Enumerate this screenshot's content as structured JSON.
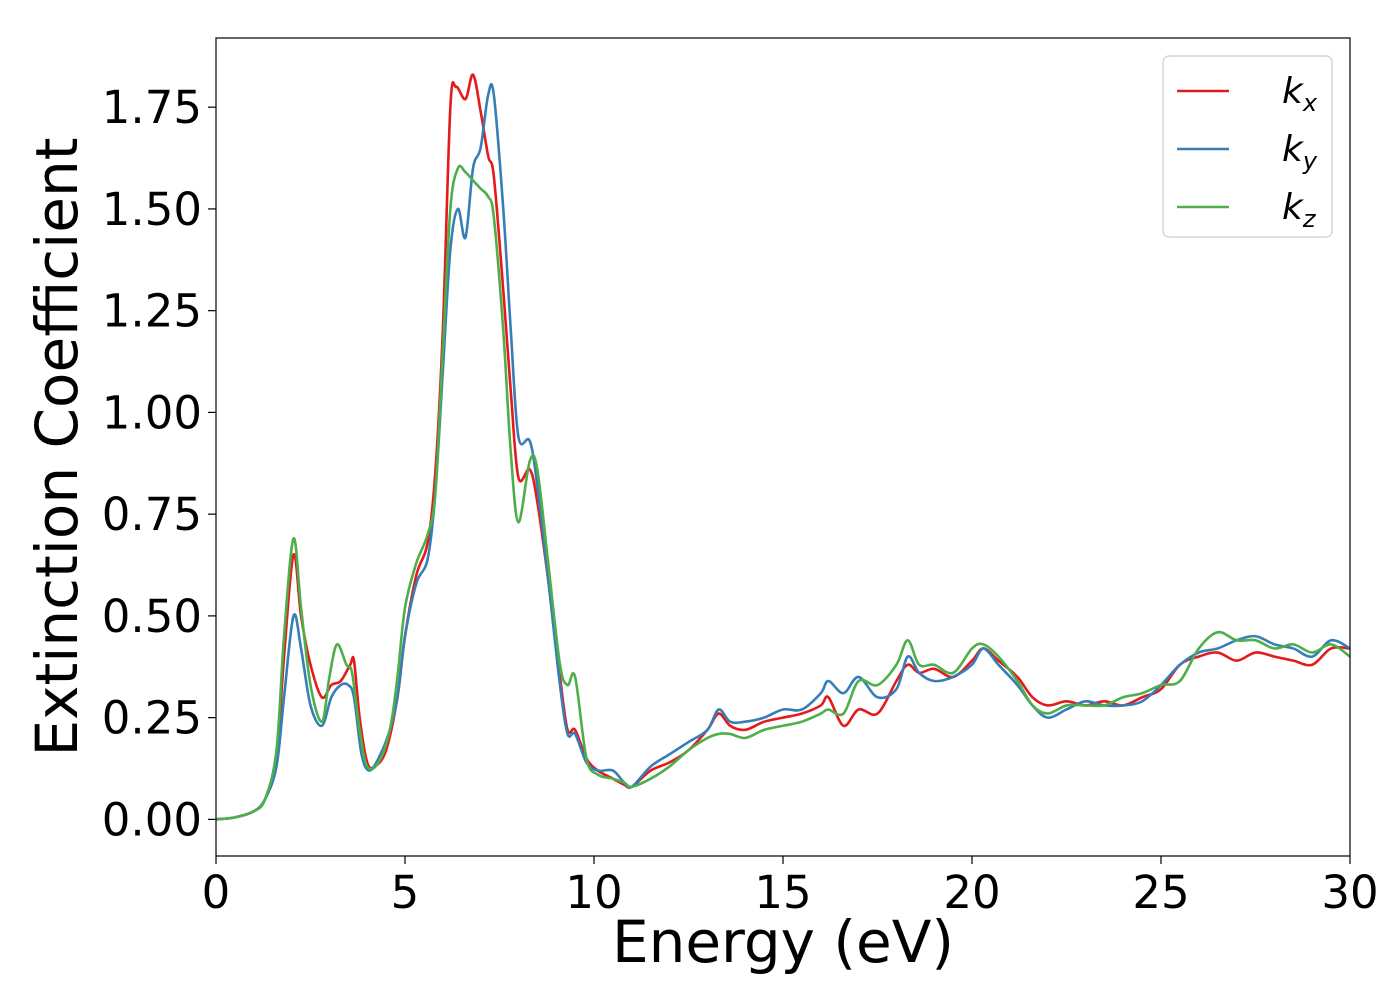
{
  "chart_data": {
    "type": "line",
    "xlabel": "Energy (eV)",
    "ylabel": "Extinction Coefficient",
    "xlim": [
      0,
      30
    ],
    "ylim": [
      -0.09,
      1.92
    ],
    "xticks": [
      0,
      5,
      10,
      15,
      20,
      25,
      30
    ],
    "yticks": [
      0.0,
      0.25,
      0.5,
      0.75,
      1.0,
      1.25,
      1.5,
      1.75
    ],
    "xtick_labels": [
      "0",
      "5",
      "10",
      "15",
      "20",
      "25",
      "30"
    ],
    "ytick_labels": [
      "0.00",
      "0.25",
      "0.50",
      "0.75",
      "1.00",
      "1.25",
      "1.50",
      "1.75"
    ],
    "grid": false,
    "legend_position": "top-right",
    "series": [
      {
        "name": "k_x",
        "legend_base": "k",
        "legend_sub": "x",
        "color": "#e41a1c",
        "points": [
          [
            0,
            0
          ],
          [
            0.5,
            0.005
          ],
          [
            1.0,
            0.02
          ],
          [
            1.3,
            0.05
          ],
          [
            1.6,
            0.15
          ],
          [
            1.8,
            0.4
          ],
          [
            2.05,
            0.65
          ],
          [
            2.25,
            0.5
          ],
          [
            2.5,
            0.38
          ],
          [
            2.8,
            0.3
          ],
          [
            3.05,
            0.33
          ],
          [
            3.3,
            0.34
          ],
          [
            3.55,
            0.38
          ],
          [
            3.65,
            0.39
          ],
          [
            3.8,
            0.25
          ],
          [
            4.0,
            0.14
          ],
          [
            4.2,
            0.13
          ],
          [
            4.5,
            0.17
          ],
          [
            4.8,
            0.3
          ],
          [
            5.0,
            0.45
          ],
          [
            5.3,
            0.6
          ],
          [
            5.6,
            0.68
          ],
          [
            5.8,
            0.85
          ],
          [
            6.0,
            1.2
          ],
          [
            6.2,
            1.75
          ],
          [
            6.35,
            1.8
          ],
          [
            6.6,
            1.77
          ],
          [
            6.8,
            1.83
          ],
          [
            7.0,
            1.74
          ],
          [
            7.2,
            1.63
          ],
          [
            7.35,
            1.58
          ],
          [
            7.6,
            1.3
          ],
          [
            7.8,
            1.05
          ],
          [
            8.0,
            0.84
          ],
          [
            8.3,
            0.86
          ],
          [
            8.5,
            0.78
          ],
          [
            8.8,
            0.58
          ],
          [
            9.1,
            0.35
          ],
          [
            9.3,
            0.22
          ],
          [
            9.5,
            0.22
          ],
          [
            9.8,
            0.15
          ],
          [
            10.1,
            0.12
          ],
          [
            10.5,
            0.1
          ],
          [
            10.8,
            0.085
          ],
          [
            11.0,
            0.08
          ],
          [
            11.5,
            0.12
          ],
          [
            12.0,
            0.14
          ],
          [
            12.5,
            0.17
          ],
          [
            13.0,
            0.22
          ],
          [
            13.3,
            0.26
          ],
          [
            13.6,
            0.23
          ],
          [
            14.0,
            0.22
          ],
          [
            14.5,
            0.24
          ],
          [
            15.0,
            0.25
          ],
          [
            15.5,
            0.26
          ],
          [
            16.0,
            0.28
          ],
          [
            16.2,
            0.3
          ],
          [
            16.6,
            0.23
          ],
          [
            17.0,
            0.27
          ],
          [
            17.5,
            0.26
          ],
          [
            18.0,
            0.34
          ],
          [
            18.3,
            0.38
          ],
          [
            18.6,
            0.36
          ],
          [
            19.0,
            0.37
          ],
          [
            19.5,
            0.35
          ],
          [
            20.0,
            0.39
          ],
          [
            20.3,
            0.42
          ],
          [
            20.7,
            0.39
          ],
          [
            21.2,
            0.35
          ],
          [
            21.6,
            0.3
          ],
          [
            22.0,
            0.28
          ],
          [
            22.5,
            0.29
          ],
          [
            23.0,
            0.28
          ],
          [
            23.5,
            0.29
          ],
          [
            24.0,
            0.28
          ],
          [
            24.5,
            0.3
          ],
          [
            25.0,
            0.32
          ],
          [
            25.5,
            0.38
          ],
          [
            26.0,
            0.4
          ],
          [
            26.5,
            0.41
          ],
          [
            27.0,
            0.39
          ],
          [
            27.5,
            0.41
          ],
          [
            28.0,
            0.4
          ],
          [
            28.5,
            0.39
          ],
          [
            29.0,
            0.38
          ],
          [
            29.5,
            0.42
          ],
          [
            30.0,
            0.42
          ]
        ]
      },
      {
        "name": "k_y",
        "legend_base": "k",
        "legend_sub": "y",
        "color": "#377eb8",
        "points": [
          [
            0,
            0
          ],
          [
            0.5,
            0.005
          ],
          [
            1.0,
            0.02
          ],
          [
            1.3,
            0.05
          ],
          [
            1.6,
            0.13
          ],
          [
            1.8,
            0.3
          ],
          [
            2.05,
            0.5
          ],
          [
            2.25,
            0.42
          ],
          [
            2.5,
            0.28
          ],
          [
            2.8,
            0.23
          ],
          [
            3.05,
            0.3
          ],
          [
            3.3,
            0.33
          ],
          [
            3.5,
            0.33
          ],
          [
            3.65,
            0.3
          ],
          [
            3.85,
            0.16
          ],
          [
            4.05,
            0.12
          ],
          [
            4.3,
            0.15
          ],
          [
            4.6,
            0.22
          ],
          [
            4.8,
            0.3
          ],
          [
            5.0,
            0.45
          ],
          [
            5.3,
            0.58
          ],
          [
            5.6,
            0.64
          ],
          [
            5.8,
            0.8
          ],
          [
            6.0,
            1.1
          ],
          [
            6.2,
            1.4
          ],
          [
            6.4,
            1.5
          ],
          [
            6.6,
            1.43
          ],
          [
            6.8,
            1.6
          ],
          [
            7.0,
            1.65
          ],
          [
            7.2,
            1.78
          ],
          [
            7.35,
            1.78
          ],
          [
            7.6,
            1.5
          ],
          [
            7.8,
            1.2
          ],
          [
            8.0,
            0.94
          ],
          [
            8.3,
            0.93
          ],
          [
            8.5,
            0.82
          ],
          [
            8.8,
            0.58
          ],
          [
            9.1,
            0.33
          ],
          [
            9.3,
            0.21
          ],
          [
            9.5,
            0.21
          ],
          [
            9.8,
            0.14
          ],
          [
            10.1,
            0.12
          ],
          [
            10.5,
            0.12
          ],
          [
            10.8,
            0.09
          ],
          [
            11.0,
            0.08
          ],
          [
            11.5,
            0.13
          ],
          [
            12.0,
            0.16
          ],
          [
            12.5,
            0.19
          ],
          [
            13.0,
            0.22
          ],
          [
            13.3,
            0.27
          ],
          [
            13.6,
            0.24
          ],
          [
            14.0,
            0.24
          ],
          [
            14.5,
            0.25
          ],
          [
            15.0,
            0.27
          ],
          [
            15.5,
            0.27
          ],
          [
            16.0,
            0.31
          ],
          [
            16.2,
            0.34
          ],
          [
            16.6,
            0.31
          ],
          [
            17.0,
            0.35
          ],
          [
            17.5,
            0.3
          ],
          [
            18.0,
            0.32
          ],
          [
            18.3,
            0.4
          ],
          [
            18.6,
            0.36
          ],
          [
            19.0,
            0.34
          ],
          [
            19.5,
            0.35
          ],
          [
            20.0,
            0.38
          ],
          [
            20.3,
            0.42
          ],
          [
            20.7,
            0.38
          ],
          [
            21.2,
            0.33
          ],
          [
            21.6,
            0.28
          ],
          [
            22.0,
            0.25
          ],
          [
            22.5,
            0.27
          ],
          [
            23.0,
            0.29
          ],
          [
            23.5,
            0.28
          ],
          [
            24.0,
            0.28
          ],
          [
            24.5,
            0.29
          ],
          [
            25.0,
            0.33
          ],
          [
            25.5,
            0.38
          ],
          [
            26.0,
            0.41
          ],
          [
            26.5,
            0.42
          ],
          [
            27.0,
            0.44
          ],
          [
            27.5,
            0.45
          ],
          [
            28.0,
            0.43
          ],
          [
            28.5,
            0.42
          ],
          [
            29.0,
            0.4
          ],
          [
            29.5,
            0.44
          ],
          [
            30.0,
            0.42
          ]
        ]
      },
      {
        "name": "k_z",
        "legend_base": "k",
        "legend_sub": "z",
        "color": "#4daf4a",
        "points": [
          [
            0,
            0
          ],
          [
            0.5,
            0.005
          ],
          [
            1.0,
            0.02
          ],
          [
            1.3,
            0.05
          ],
          [
            1.6,
            0.17
          ],
          [
            1.8,
            0.45
          ],
          [
            2.05,
            0.69
          ],
          [
            2.25,
            0.52
          ],
          [
            2.5,
            0.33
          ],
          [
            2.8,
            0.24
          ],
          [
            3.0,
            0.35
          ],
          [
            3.2,
            0.43
          ],
          [
            3.45,
            0.38
          ],
          [
            3.6,
            0.36
          ],
          [
            3.8,
            0.22
          ],
          [
            4.0,
            0.13
          ],
          [
            4.3,
            0.14
          ],
          [
            4.6,
            0.22
          ],
          [
            4.8,
            0.35
          ],
          [
            5.0,
            0.52
          ],
          [
            5.3,
            0.63
          ],
          [
            5.6,
            0.7
          ],
          [
            5.8,
            0.8
          ],
          [
            6.0,
            1.15
          ],
          [
            6.2,
            1.5
          ],
          [
            6.4,
            1.6
          ],
          [
            6.6,
            1.59
          ],
          [
            6.8,
            1.57
          ],
          [
            7.0,
            1.55
          ],
          [
            7.2,
            1.53
          ],
          [
            7.35,
            1.48
          ],
          [
            7.6,
            1.2
          ],
          [
            7.8,
            0.9
          ],
          [
            8.0,
            0.73
          ],
          [
            8.3,
            0.88
          ],
          [
            8.5,
            0.86
          ],
          [
            8.8,
            0.62
          ],
          [
            9.1,
            0.38
          ],
          [
            9.3,
            0.33
          ],
          [
            9.5,
            0.35
          ],
          [
            9.8,
            0.15
          ],
          [
            10.1,
            0.11
          ],
          [
            10.5,
            0.1
          ],
          [
            10.8,
            0.09
          ],
          [
            11.0,
            0.08
          ],
          [
            11.5,
            0.1
          ],
          [
            12.0,
            0.13
          ],
          [
            12.5,
            0.17
          ],
          [
            13.0,
            0.2
          ],
          [
            13.3,
            0.21
          ],
          [
            13.6,
            0.21
          ],
          [
            14.0,
            0.2
          ],
          [
            14.5,
            0.22
          ],
          [
            15.0,
            0.23
          ],
          [
            15.5,
            0.24
          ],
          [
            16.0,
            0.26
          ],
          [
            16.2,
            0.27
          ],
          [
            16.6,
            0.26
          ],
          [
            17.0,
            0.34
          ],
          [
            17.5,
            0.33
          ],
          [
            18.0,
            0.38
          ],
          [
            18.3,
            0.44
          ],
          [
            18.6,
            0.38
          ],
          [
            19.0,
            0.38
          ],
          [
            19.5,
            0.36
          ],
          [
            20.0,
            0.42
          ],
          [
            20.3,
            0.43
          ],
          [
            20.7,
            0.4
          ],
          [
            21.2,
            0.34
          ],
          [
            21.6,
            0.28
          ],
          [
            22.0,
            0.26
          ],
          [
            22.5,
            0.28
          ],
          [
            23.0,
            0.28
          ],
          [
            23.5,
            0.28
          ],
          [
            24.0,
            0.3
          ],
          [
            24.5,
            0.31
          ],
          [
            25.0,
            0.33
          ],
          [
            25.5,
            0.34
          ],
          [
            26.0,
            0.42
          ],
          [
            26.5,
            0.46
          ],
          [
            27.0,
            0.44
          ],
          [
            27.5,
            0.44
          ],
          [
            28.0,
            0.42
          ],
          [
            28.5,
            0.43
          ],
          [
            29.0,
            0.41
          ],
          [
            29.5,
            0.43
          ],
          [
            30.0,
            0.4
          ]
        ]
      }
    ]
  }
}
